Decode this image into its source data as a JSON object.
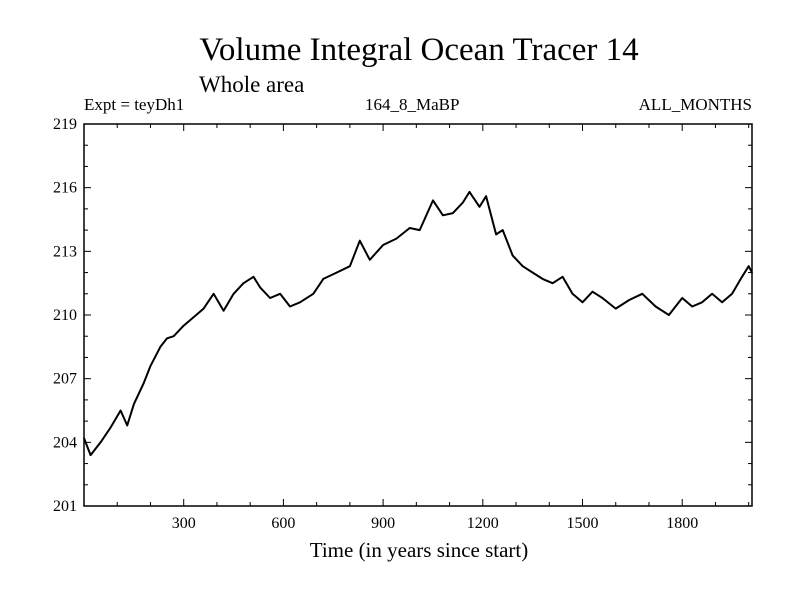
{
  "header": {
    "title": "Volume Integral Ocean Tracer 14",
    "subtitle": "Whole area",
    "experiment": "Expt = teyDh1",
    "run": "164_8_MaBP",
    "period": "ALL_MONTHS"
  },
  "chart_data": {
    "type": "line",
    "title": "Volume Integral Ocean Tracer 14",
    "subtitle": "Whole area",
    "xlabel": "Time (in years since start)",
    "ylabel": "",
    "xlim": [
      0,
      2010
    ],
    "ylim": [
      201,
      219
    ],
    "xticks": [
      300,
      600,
      900,
      1200,
      1500,
      1800
    ],
    "yticks": [
      201,
      204,
      207,
      210,
      213,
      216,
      219
    ],
    "series": [
      {
        "name": "Tracer 14",
        "color": "#000000",
        "x": [
          0,
          20,
          50,
          80,
          110,
          130,
          150,
          180,
          200,
          230,
          250,
          270,
          300,
          330,
          360,
          390,
          420,
          450,
          480,
          510,
          530,
          560,
          590,
          620,
          650,
          690,
          720,
          760,
          800,
          830,
          860,
          900,
          940,
          980,
          1010,
          1050,
          1080,
          1110,
          1140,
          1160,
          1190,
          1210,
          1240,
          1260,
          1290,
          1320,
          1350,
          1380,
          1410,
          1440,
          1470,
          1500,
          1530,
          1560,
          1600,
          1640,
          1680,
          1720,
          1760,
          1800,
          1830,
          1860,
          1890,
          1920,
          1950,
          1980,
          2000,
          2010
        ],
        "y": [
          204.2,
          203.4,
          204.0,
          204.7,
          205.5,
          204.8,
          205.8,
          206.8,
          207.6,
          208.5,
          208.9,
          209.0,
          209.5,
          209.9,
          210.3,
          211.0,
          210.2,
          211.0,
          211.5,
          211.8,
          211.3,
          210.8,
          211.0,
          210.4,
          210.6,
          211.0,
          211.7,
          212.0,
          212.3,
          213.5,
          212.6,
          213.3,
          213.6,
          214.1,
          214.0,
          215.4,
          214.7,
          214.8,
          215.3,
          215.8,
          215.1,
          215.6,
          213.8,
          214.0,
          212.8,
          212.3,
          212.0,
          211.7,
          211.5,
          211.8,
          211.0,
          210.6,
          211.1,
          210.8,
          210.3,
          210.7,
          211.0,
          210.4,
          210.0,
          210.8,
          210.4,
          210.6,
          211.0,
          210.6,
          211.0,
          211.8,
          212.3,
          212.0
        ]
      }
    ]
  }
}
